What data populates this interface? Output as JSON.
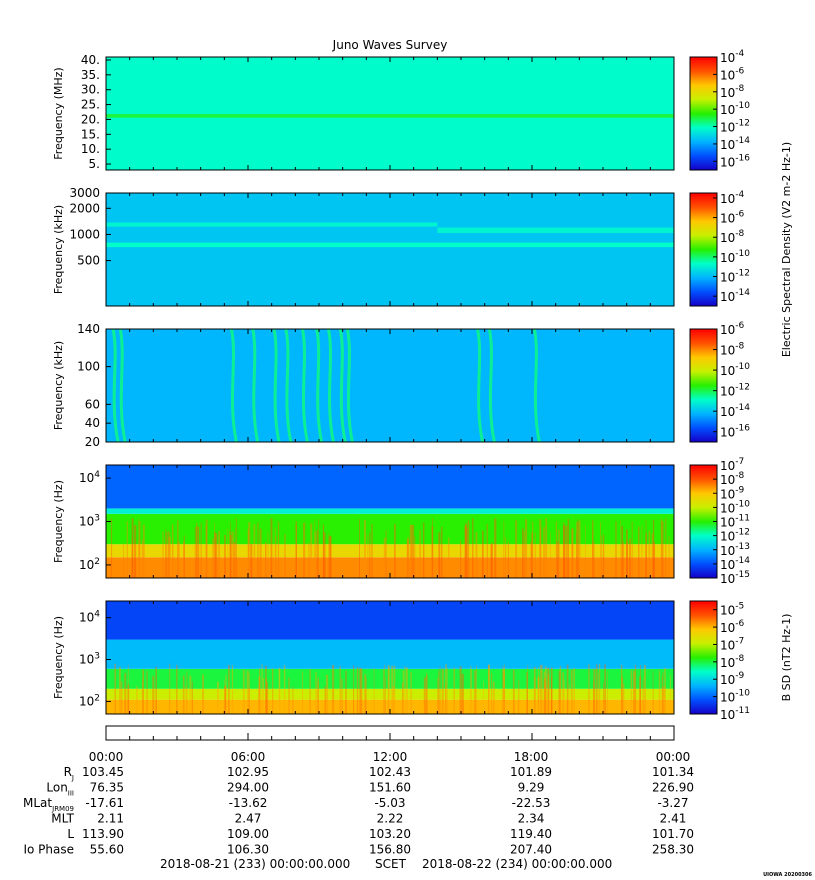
{
  "title": "Juno Waves Survey",
  "stamp": "UIOWA 20200306",
  "colors": {
    "scale": [
      "#1400c8",
      "#0050ff",
      "#00b4ff",
      "#00ffc8",
      "#28f000",
      "#c8f000",
      "#ffc800",
      "#ff5000",
      "#ff0000"
    ]
  },
  "chart_data": [
    {
      "type": "heatmap",
      "panel": "hfwbr",
      "ylabel": "Frequency (MHz)",
      "yscale": "linear",
      "ylim": [
        3,
        41
      ],
      "yticks": [
        "40.",
        "35.",
        "30.",
        "25.",
        "20.",
        "15.",
        "10.",
        "5."
      ],
      "ytick_values": [
        40,
        35,
        30,
        25,
        20,
        15,
        10,
        5
      ],
      "colorbar": {
        "scale": "log",
        "ticks": [
          "10-4",
          "10-6",
          "10-8",
          "10-10",
          "10-12",
          "10-14",
          "10-16"
        ],
        "range": [
          -17,
          -4
        ]
      },
      "background_level": -12.2,
      "bands": [
        {
          "y_center": 21.2,
          "width": 1.2,
          "level": -11.0
        }
      ]
    },
    {
      "type": "heatmap",
      "panel": "lfrh",
      "ylabel": "Frequency (kHz)",
      "yscale": "log",
      "ylim": [
        150,
        3000
      ],
      "yticks": [
        "3000",
        "2000",
        "1000",
        "500"
      ],
      "ytick_values": [
        3000,
        2000,
        1000,
        500
      ],
      "colorbar": {
        "scale": "log",
        "ticks": [
          "10-4",
          "10-6",
          "10-8",
          "10-10",
          "10-12",
          "10-14"
        ],
        "range": [
          -15,
          -3.5
        ],
        "label": "Electric Spectral Density (V2 m-2 Hz-1)"
      },
      "background_level": -11.8,
      "bands": [
        {
          "y_center": 1300,
          "width": 140,
          "level": -10.9,
          "x_end_h": 14
        },
        {
          "y_center": 1120,
          "width": 160,
          "level": -10.9,
          "x_start_h": 14
        },
        {
          "y_center": 760,
          "width": 90,
          "level": -10.7
        }
      ]
    },
    {
      "type": "heatmap",
      "panel": "lfrl",
      "ylabel": "Frequency (kHz)",
      "yscale": "linear",
      "ylim": [
        20,
        140
      ],
      "yticks": [
        "140",
        "100",
        "60",
        "40",
        "20"
      ],
      "ytick_values": [
        140,
        100,
        60,
        40,
        20
      ],
      "colorbar": {
        "scale": "log",
        "ticks": [
          "10-6",
          "10-8",
          "10-10",
          "10-12",
          "10-14",
          "10-16"
        ],
        "range": [
          -17,
          -6
        ]
      },
      "background_level": -14.2,
      "bursts_hours": [
        0.3,
        0.6,
        5.3,
        6.2,
        7.1,
        7.6,
        8.3,
        8.9,
        9.4,
        9.9,
        10.2,
        15.7,
        16.2,
        18.1
      ]
    },
    {
      "type": "heatmap",
      "panel": "e_lf",
      "ylabel": "Frequency (Hz)",
      "yscale": "log",
      "ylim": [
        50,
        20000
      ],
      "yticks": [
        "10^4",
        "10^3",
        "10^2"
      ],
      "ytick_values": [
        10000,
        1000,
        100
      ],
      "colorbar": {
        "scale": "log",
        "ticks": [
          "10-7",
          "10-8",
          "10-9",
          "10-10",
          "10-11",
          "10-12",
          "10-13",
          "10-14",
          "10-15"
        ],
        "range": [
          -15,
          -7
        ]
      },
      "layers_hz": [
        {
          "upto": 150,
          "level": -8.5
        },
        {
          "upto": 300,
          "level": -9.4
        },
        {
          "upto": 1500,
          "level": -11.0
        },
        {
          "upto": 2000,
          "level": -12.2
        },
        {
          "upto": 20000,
          "level": -13.8
        }
      ]
    },
    {
      "type": "heatmap",
      "panel": "b_lf",
      "ylabel": "Frequency (Hz)",
      "yscale": "log",
      "ylim": [
        50,
        25000
      ],
      "yticks": [
        "10^4",
        "10^3",
        "10^2"
      ],
      "ytick_values": [
        10000,
        1000,
        100
      ],
      "colorbar": {
        "scale": "log",
        "ticks": [
          "10-5",
          "10-6",
          "10-7",
          "10-8",
          "10-9",
          "10-10",
          "10-11"
        ],
        "range": [
          -11,
          -4.5
        ],
        "label": "B SD (nT2 Hz-1)"
      },
      "layers_hz": [
        {
          "upto": 110,
          "level": -6.0
        },
        {
          "upto": 200,
          "level": -6.9
        },
        {
          "upto": 600,
          "level": -8.0
        },
        {
          "upto": 3000,
          "level": -9.3
        },
        {
          "upto": 25000,
          "level": -10.3
        }
      ]
    }
  ],
  "ephemeris": {
    "times": [
      "00:00",
      "06:00",
      "12:00",
      "18:00",
      "00:00"
    ],
    "rows": [
      {
        "label": "R",
        "sub": "J",
        "values": [
          "103.45",
          "102.95",
          "102.43",
          "101.89",
          "101.34"
        ]
      },
      {
        "label": "Lon",
        "sub": "III",
        "values": [
          "76.35",
          "294.00",
          "151.60",
          "9.29",
          "226.90"
        ]
      },
      {
        "label": "MLat",
        "sub": "JRM09",
        "values": [
          "-17.61",
          "-13.62",
          "-5.03",
          "-22.53",
          "-3.27"
        ]
      },
      {
        "label": "MLT",
        "sub": "",
        "values": [
          "2.11",
          "2.47",
          "2.22",
          "2.34",
          "2.41"
        ]
      },
      {
        "label": "L",
        "sub": "",
        "values": [
          "113.90",
          "109.00",
          "103.20",
          "119.40",
          "101.70"
        ]
      },
      {
        "label": "Io Phase",
        "sub": "",
        "values": [
          "55.60",
          "106.30",
          "156.80",
          "207.40",
          "258.30"
        ]
      }
    ]
  },
  "footer": {
    "start": "2018-08-21 (233) 00:00:00.000",
    "mid": "SCET",
    "end": "2018-08-22 (234) 00:00:00.000"
  }
}
